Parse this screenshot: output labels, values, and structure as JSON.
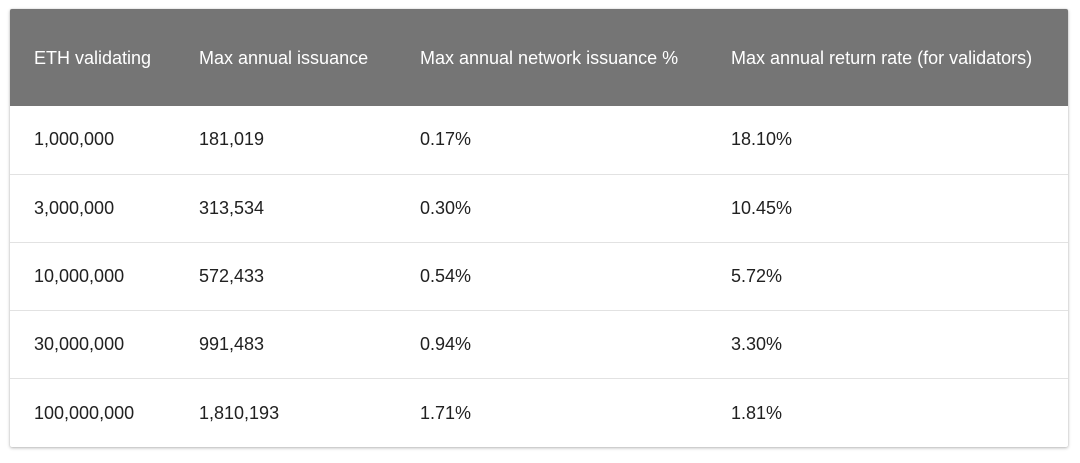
{
  "table": {
    "headers": [
      "ETH validating",
      "Max annual issuance",
      "Max annual network issuance %",
      "Max annual return rate (for validators)"
    ],
    "rows": [
      [
        "1,000,000",
        "181,019",
        "0.17%",
        "18.10%"
      ],
      [
        "3,000,000",
        "313,534",
        "0.30%",
        "10.45%"
      ],
      [
        "10,000,000",
        "572,433",
        "0.54%",
        "5.72%"
      ],
      [
        "30,000,000",
        "991,483",
        "0.94%",
        "3.30%"
      ],
      [
        "100,000,000",
        "1,810,193",
        "1.71%",
        "1.81%"
      ]
    ]
  },
  "colors": {
    "header_bg": "#757575",
    "header_text": "#ffffff",
    "cell_text": "#212121",
    "row_divider": "#e2e2e2"
  }
}
